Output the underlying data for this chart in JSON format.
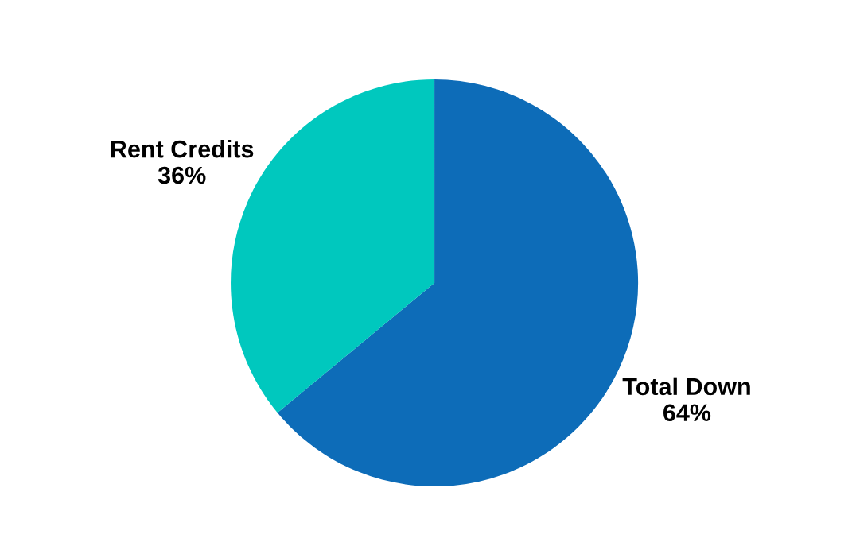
{
  "chart_data": {
    "type": "pie",
    "categories": [
      "Total Down",
      "Rent Credits"
    ],
    "values": [
      64,
      36
    ],
    "value_labels": [
      "64%",
      "36%"
    ],
    "colors": [
      "#0d6cb8",
      "#00c8be"
    ],
    "legend": false
  }
}
